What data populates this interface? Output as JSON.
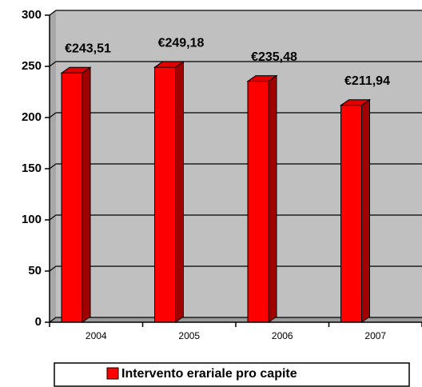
{
  "chart_data": {
    "type": "bar3d",
    "categories": [
      "2004",
      "2005",
      "2006",
      "2007"
    ],
    "series": [
      {
        "name": "Intervento erariale pro capite",
        "color": "#ff0000",
        "values": [
          243.51,
          249.18,
          235.48,
          211.94
        ],
        "value_labels": [
          "€243,51",
          "€249,18",
          "€235,48",
          "€211,94"
        ]
      }
    ],
    "ylim": [
      0,
      300
    ],
    "yticks": [
      0,
      50,
      100,
      150,
      200,
      250,
      300
    ],
    "grid": true,
    "legend": "bottom"
  }
}
